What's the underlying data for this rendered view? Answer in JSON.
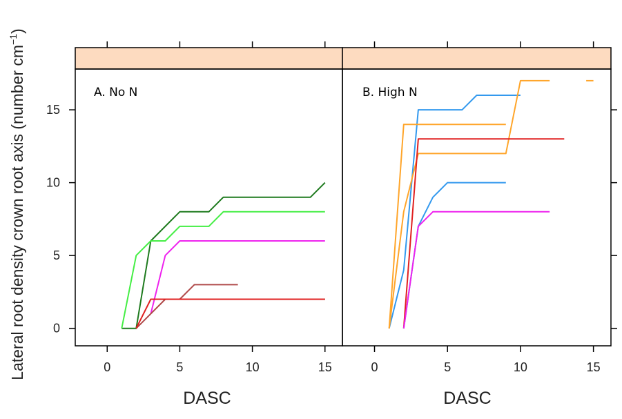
{
  "chart_data": {
    "type": "line",
    "ylabel": "Lateral root density crown root axis (number cm",
    "ylabel_sup": "−1",
    "ylabel_close": ")",
    "xlim": [
      -2.2,
      16.2
    ],
    "ylim": [
      -1.2,
      17.8
    ],
    "x_ticks": [
      0,
      5,
      10,
      15
    ],
    "y_ticks": [
      0,
      5,
      10,
      15
    ],
    "strip_color": "#FDDBC0",
    "panels": [
      {
        "label": "A. No N",
        "xlabel": "DASC",
        "series": [
          {
            "color": "#1E7A1E",
            "x": [
              1,
              2,
              3,
              5,
              7,
              8,
              14,
              15
            ],
            "y": [
              0,
              0,
              6,
              8,
              8,
              9,
              9,
              10
            ]
          },
          {
            "color": "#44EE44",
            "x": [
              1,
              2,
              3,
              4,
              5,
              7,
              8,
              15
            ],
            "y": [
              0,
              5,
              6,
              6,
              7,
              7,
              8,
              8
            ]
          },
          {
            "color": "#EE22EE",
            "x": [
              3,
              4,
              5,
              15
            ],
            "y": [
              1,
              5,
              6,
              6
            ]
          },
          {
            "color": "#B04A4A",
            "x": [
              2,
              4,
              5,
              6,
              9
            ],
            "y": [
              0,
              2,
              2,
              3,
              3
            ]
          },
          {
            "color": "#228B22",
            "x": [
              12,
              15
            ],
            "y": [
              2,
              2
            ]
          },
          {
            "color": "#E02020",
            "x": [
              2,
              3,
              15
            ],
            "y": [
              0,
              2,
              2
            ]
          }
        ]
      },
      {
        "label": "B. High N",
        "xlabel": "DASC",
        "series": [
          {
            "color": "#3399EE",
            "x": [
              1,
              2,
              3,
              6,
              7,
              10
            ],
            "y": [
              0,
              4,
              15,
              15,
              16,
              16
            ]
          },
          {
            "color": "#3399EE",
            "x": [
              2,
              3,
              4,
              5,
              9
            ],
            "y": [
              0,
              7,
              9,
              10,
              10
            ]
          },
          {
            "color": "#FFA52A",
            "x": [
              1,
              2,
              9
            ],
            "y": [
              0,
              14,
              14
            ]
          },
          {
            "color": "#FFA52A",
            "x": [
              1,
              2,
              3,
              9,
              10,
              12
            ],
            "y": [
              0,
              8,
              12,
              12,
              17,
              17
            ]
          },
          {
            "color": "#FFA52A",
            "x": [
              14.5,
              15
            ],
            "y": [
              17,
              17
            ]
          },
          {
            "color": "#E02020",
            "x": [
              2,
              3,
              13
            ],
            "y": [
              0,
              13,
              13
            ]
          },
          {
            "color": "#EE22EE",
            "x": [
              2,
              3,
              4,
              12
            ],
            "y": [
              0,
              7,
              8,
              8
            ]
          }
        ]
      }
    ]
  }
}
